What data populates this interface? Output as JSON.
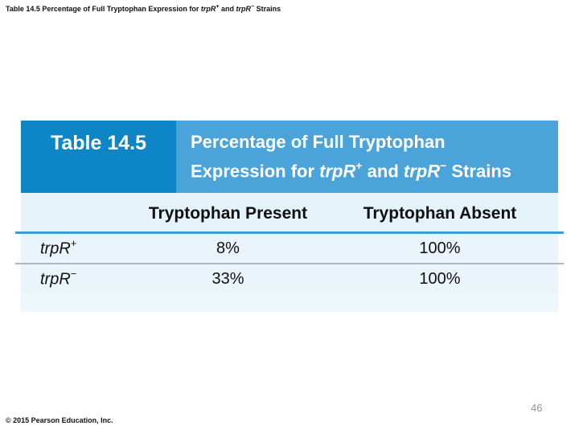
{
  "slide": {
    "caption": {
      "prefix": "Table 14.5 Percentage of Full Tryptophan Expression for ",
      "gene1": "trpR",
      "sup1": "+",
      "mid": " and ",
      "gene2": "trpR",
      "sup2": "−",
      "suffix": " Strains"
    },
    "footer": "© 2015 Pearson Education, Inc.",
    "page_number": "46"
  },
  "table": {
    "label": "Table 14.5",
    "heading": {
      "line1": "Percentage of Full Tryptophan",
      "line2_prefix": "Expression for ",
      "gene1": "trpR",
      "sup1": "+",
      "line2_mid": " and ",
      "gene2": "trpR",
      "sup2": "−",
      "line2_suffix": " Strains"
    },
    "columns": [
      "Tryptophan Present",
      "Tryptophan Absent"
    ],
    "rows": [
      {
        "gene": "trpR",
        "sup": "+",
        "present": "8%",
        "absent": "100%"
      },
      {
        "gene": "trpR",
        "sup": "−",
        "present": "33%",
        "absent": "100%"
      }
    ],
    "colors": {
      "header_dark_blue": "#0E86C6",
      "header_medium_blue": "#4AA4DA",
      "column_header_blue": "#E4F2FA",
      "row_light_blue": "#E9F4FB",
      "rule_blue": "#3D9DD2",
      "separator_gray": "#AEB5BA"
    }
  }
}
